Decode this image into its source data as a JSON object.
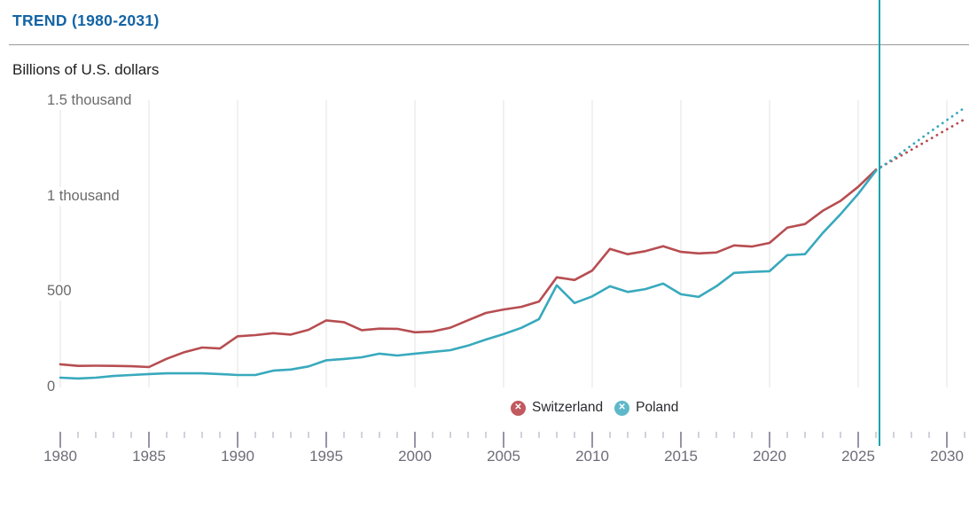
{
  "header": {
    "title": "TREND (1980-2031)",
    "subtitle": "Billions of U.S. dollars"
  },
  "legend": {
    "remove_icon": "✕",
    "items": [
      {
        "label": "Switzerland",
        "color": "#c05a5e"
      },
      {
        "label": "Poland",
        "color": "#5eb8ca"
      }
    ]
  },
  "colors": {
    "title_blue": "#1464a4",
    "divider_gray": "#9a9a9a",
    "gridline": "#e3e3e3",
    "tick_minor": "#c2c2d1",
    "tick_major": "#9595a8",
    "axis_text": "#6d6d78",
    "current_year_line": "#16a3ae",
    "switzerland_line": "#b74d51",
    "poland_line": "#38a9bd"
  },
  "chart_data": {
    "type": "line",
    "title": "TREND (1980-2031)",
    "ylabel": "Billions of U.S. dollars",
    "xlabel": "",
    "xlim": [
      1980,
      2031
    ],
    "ylim": [
      0,
      1500
    ],
    "grid": "vertical-only",
    "legend_position": "bottom-center",
    "current_year_marker": 2026.2,
    "x_ticks": [
      1980,
      1985,
      1990,
      1995,
      2000,
      2005,
      2010,
      2015,
      2020,
      2025,
      2030
    ],
    "y_ticks": [
      {
        "value": 0,
        "label": "0"
      },
      {
        "value": 500,
        "label": "500"
      },
      {
        "value": 1000,
        "label": "1 thousand"
      },
      {
        "value": 1500,
        "label": "1.5 thousand"
      }
    ],
    "series": [
      {
        "name": "Switzerland",
        "color": "#b74d51",
        "years": [
          1980,
          1981,
          1982,
          1983,
          1984,
          1985,
          1986,
          1987,
          1988,
          1989,
          1990,
          1991,
          1992,
          1993,
          1994,
          1995,
          1996,
          1997,
          1998,
          1999,
          2000,
          2001,
          2002,
          2003,
          2004,
          2005,
          2006,
          2007,
          2008,
          2009,
          2010,
          2011,
          2012,
          2013,
          2014,
          2015,
          2016,
          2017,
          2018,
          2019,
          2020,
          2021,
          2022,
          2023,
          2024,
          2025,
          2026
        ],
        "values": [
          121,
          113,
          114,
          113,
          111,
          107,
          150,
          185,
          209,
          204,
          268,
          274,
          284,
          277,
          302,
          351,
          342,
          300,
          308,
          307,
          289,
          293,
          313,
          352,
          390,
          408,
          422,
          450,
          577,
          563,
          612,
          726,
          698,
          714,
          740,
          710,
          702,
          707,
          744,
          738,
          757,
          837,
          856,
          925,
          977,
          1051,
          1140
        ],
        "projection_years": [
          2026,
          2027,
          2028,
          2029,
          2030,
          2031
        ],
        "projection_values": [
          1140,
          1192,
          1245,
          1298,
          1352,
          1405
        ]
      },
      {
        "name": "Poland",
        "color": "#38a9bd",
        "years": [
          1980,
          1981,
          1982,
          1983,
          1984,
          1985,
          1986,
          1987,
          1988,
          1989,
          1990,
          1991,
          1992,
          1993,
          1994,
          1995,
          1996,
          1997,
          1998,
          1999,
          2000,
          2001,
          2002,
          2003,
          2004,
          2005,
          2006,
          2007,
          2008,
          2009,
          2010,
          2011,
          2012,
          2013,
          2014,
          2015,
          2016,
          2017,
          2018,
          2019,
          2020,
          2021,
          2022,
          2023,
          2024,
          2025,
          2026
        ],
        "values": [
          51,
          47,
          51,
          60,
          65,
          70,
          74,
          74,
          74,
          70,
          65,
          65,
          88,
          94,
          110,
          142,
          149,
          158,
          177,
          167,
          177,
          186,
          195,
          219,
          251,
          279,
          312,
          358,
          535,
          442,
          477,
          530,
          500,
          515,
          544,
          488,
          474,
          530,
          600,
          605,
          609,
          693,
          698,
          809,
          907,
          1014,
          1135
        ],
        "projection_years": [
          2026,
          2027,
          2028,
          2029,
          2030,
          2031
        ],
        "projection_values": [
          1135,
          1200,
          1268,
          1335,
          1400,
          1465
        ]
      }
    ]
  }
}
